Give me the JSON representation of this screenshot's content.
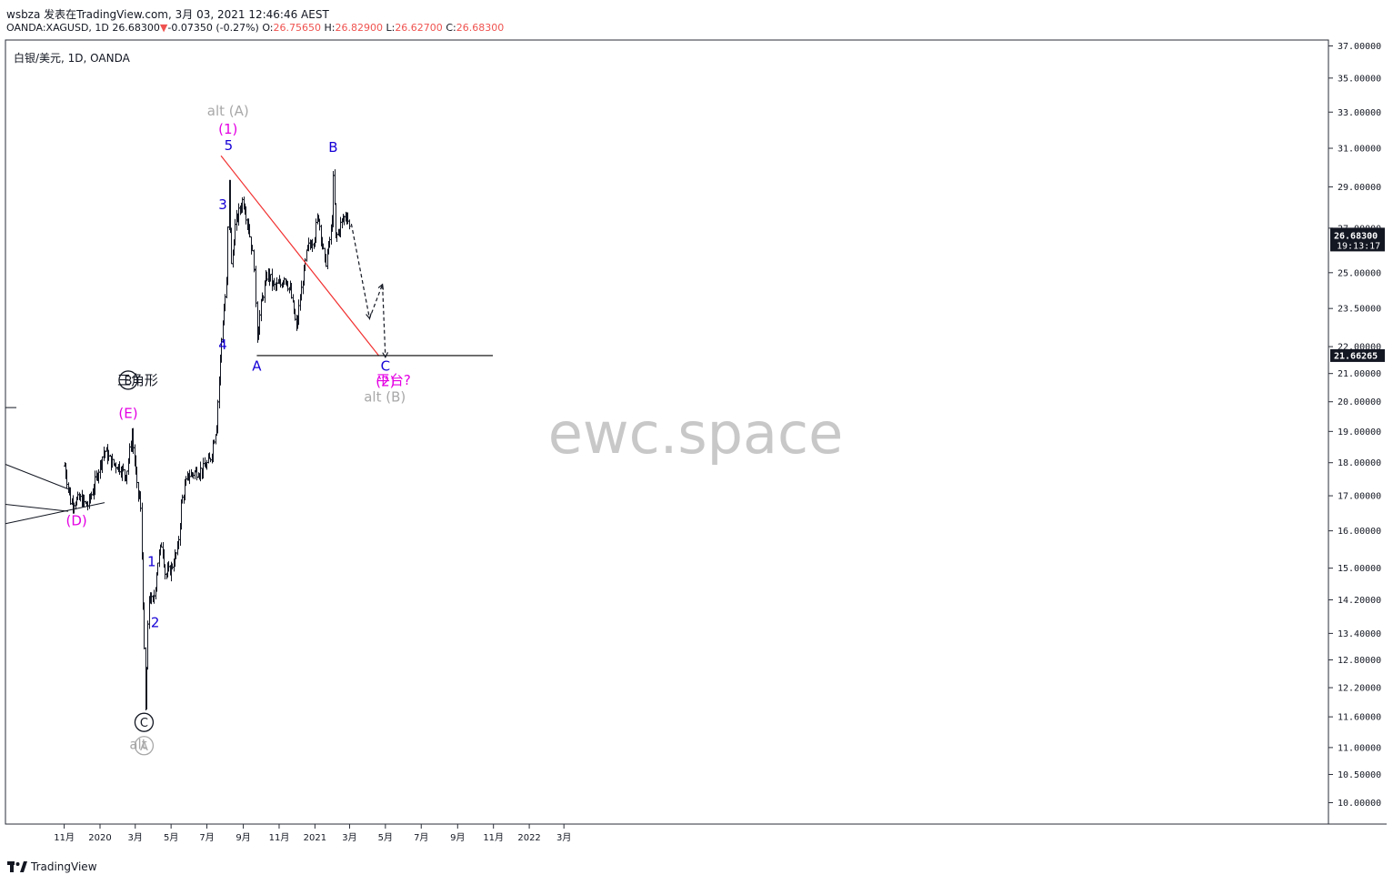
{
  "header": {
    "line1": "wsbza 发表在TradingView.com, 3月 03, 2021 12:46:46 AEST",
    "symbol_prefix": "OANDA:XAGUSD, 1D",
    "last": "26.68300",
    "down_arrow": "▼",
    "change": "-0.07350 (-0.27%)",
    "o_label": "O:",
    "o_val": "26.75650",
    "h_label": "H:",
    "h_val": "26.82900",
    "l_label": "L:",
    "l_val": "26.62700",
    "c_label": "C:",
    "c_val": "26.68300"
  },
  "symbol_label": "白银/美元, 1D, OANDA",
  "footer": {
    "brand": "TradingView"
  },
  "colors": {
    "wave_blue": "#1500d6",
    "wave_magenta": "#e400e3",
    "alt_gray": "#a8a8a8",
    "trendline": "#f23030",
    "bars": "#131722",
    "watermark": "#c8c8c8",
    "price_tag": "#131722"
  },
  "chart_data": {
    "type": "ohlc",
    "symbol": "OANDA:XAGUSD",
    "timeframe": "1D",
    "y_scale": "log",
    "ylim": [
      9.7,
      37.2
    ],
    "y_ticks": [
      "37.00000",
      "35.00000",
      "33.00000",
      "31.00000",
      "29.00000",
      "27.00000",
      "25.00000",
      "23.50000",
      "22.00000",
      "21.00000",
      "20.00000",
      "19.00000",
      "18.00000",
      "17.00000",
      "16.00000",
      "15.00000",
      "14.20000",
      "13.40000",
      "12.80000",
      "12.20000",
      "11.60000",
      "11.00000",
      "10.50000",
      "10.00000"
    ],
    "x_ticks": [
      "11月",
      "2020",
      "3月",
      "5月",
      "7月",
      "9月",
      "11月",
      "2021",
      "3月",
      "5月",
      "7月",
      "9月",
      "11月",
      "2022",
      "3月"
    ],
    "last_price": {
      "value": "26.68300",
      "countdown": "19:13:17"
    },
    "level_price": "21.66265",
    "price_path": [
      [
        "2019-11-01",
        17.9
      ],
      [
        "2019-11-12",
        16.8
      ],
      [
        "2019-11-28",
        16.9
      ],
      [
        "2019-12-10",
        16.7
      ],
      [
        "2019-12-20",
        17.2
      ],
      [
        "2019-12-31",
        17.9
      ],
      [
        "2020-01-08",
        18.4
      ],
      [
        "2020-01-20",
        18.0
      ],
      [
        "2020-02-01",
        17.9
      ],
      [
        "2020-02-14",
        17.6
      ],
      [
        "2020-02-24",
        18.9
      ],
      [
        "2020-03-04",
        17.1
      ],
      [
        "2020-03-09",
        16.9
      ],
      [
        "2020-03-12",
        15.2
      ],
      [
        "2020-03-18",
        11.7
      ],
      [
        "2020-03-24",
        14.3
      ],
      [
        "2020-03-31",
        14.1
      ],
      [
        "2020-04-08",
        15.2
      ],
      [
        "2020-04-15",
        15.7
      ],
      [
        "2020-04-21",
        14.8
      ],
      [
        "2020-05-01",
        15.0
      ],
      [
        "2020-05-12",
        15.5
      ],
      [
        "2020-05-18",
        16.8
      ],
      [
        "2020-05-29",
        17.6
      ],
      [
        "2020-06-10",
        17.7
      ],
      [
        "2020-06-24",
        17.8
      ],
      [
        "2020-07-06",
        18.1
      ],
      [
        "2020-07-17",
        19.2
      ],
      [
        "2020-07-22",
        21.0
      ],
      [
        "2020-07-27",
        22.8
      ],
      [
        "2020-08-03",
        24.5
      ],
      [
        "2020-08-07",
        29.3
      ],
      [
        "2020-08-11",
        25.2
      ],
      [
        "2020-08-18",
        27.2
      ],
      [
        "2020-08-31",
        28.4
      ],
      [
        "2020-09-10",
        27.0
      ],
      [
        "2020-09-21",
        24.7
      ],
      [
        "2020-09-24",
        22.4
      ],
      [
        "2020-10-01",
        23.7
      ],
      [
        "2020-10-12",
        25.0
      ],
      [
        "2020-10-23",
        24.4
      ],
      [
        "2020-11-04",
        24.5
      ],
      [
        "2020-11-09",
        24.9
      ],
      [
        "2020-11-20",
        24.2
      ],
      [
        "2020-11-30",
        22.7
      ],
      [
        "2020-12-08",
        24.2
      ],
      [
        "2020-12-18",
        26.0
      ],
      [
        "2020-12-31",
        26.6
      ],
      [
        "2021-01-06",
        27.7
      ],
      [
        "2021-01-18",
        25.3
      ],
      [
        "2021-01-29",
        27.0
      ],
      [
        "2021-02-01",
        29.5
      ],
      [
        "2021-02-05",
        26.5
      ],
      [
        "2021-02-15",
        27.3
      ],
      [
        "2021-02-24",
        27.7
      ],
      [
        "2021-03-02",
        26.683
      ]
    ],
    "projection": [
      [
        "2021-03-04",
        27.2
      ],
      [
        "2021-04-04",
        23.1
      ],
      [
        "2021-04-26",
        24.5
      ],
      [
        "2021-05-01",
        21.6
      ]
    ],
    "trendlines": [
      {
        "color": "#f23030",
        "from": [
          "2020-07-25",
          30.6
        ],
        "to": [
          "2021-04-20",
          21.65
        ]
      },
      {
        "color": "#000000",
        "from": [
          "2020-09-24",
          21.66265
        ],
        "to": [
          "2021-10-31",
          21.66265
        ]
      }
    ],
    "wave_labels": [
      {
        "text": "alt (A)",
        "color": "#a8a8a8",
        "at": [
          "2020-08-06",
          32.8
        ],
        "style": "text"
      },
      {
        "text": "(1)",
        "color": "#e400e3",
        "at": [
          "2020-08-06",
          31.8
        ],
        "style": "text"
      },
      {
        "text": "5",
        "color": "#1500d6",
        "at": [
          "2020-08-07",
          30.9
        ],
        "style": "text"
      },
      {
        "text": "3",
        "color": "#1500d6",
        "at": [
          "2020-07-28",
          27.9
        ],
        "style": "text"
      },
      {
        "text": "4",
        "color": "#1500d6",
        "at": [
          "2020-07-28",
          21.9
        ],
        "style": "text"
      },
      {
        "text": "B",
        "color": "#1500d6",
        "at": [
          "2021-02-01",
          30.8
        ],
        "style": "text"
      },
      {
        "text": "A",
        "color": "#1500d6",
        "at": [
          "2020-09-24",
          21.1
        ],
        "style": "text"
      },
      {
        "text": "C",
        "color": "#1500d6",
        "at": [
          "2021-05-01",
          21.1
        ],
        "style": "text"
      },
      {
        "text": "(2)",
        "color": "#e400e3",
        "at": [
          "2021-05-01",
          20.55
        ],
        "style": "text"
      },
      {
        "text": "平台?",
        "color": "#e400e3",
        "at": [
          "2021-05-15",
          20.6
        ],
        "style": "text"
      },
      {
        "text": "alt (B)",
        "color": "#a8a8a8",
        "at": [
          "2021-04-30",
          20.0
        ],
        "style": "text"
      },
      {
        "text": "B",
        "color": "#131722",
        "at": [
          "2020-02-18",
          20.6
        ],
        "style": "circle"
      },
      {
        "text": "三角形",
        "color": "#131722",
        "at": [
          "2020-03-05",
          20.6
        ],
        "style": "text"
      },
      {
        "text": "(E)",
        "color": "#e400e3",
        "at": [
          "2020-02-18",
          19.45
        ],
        "style": "text"
      },
      {
        "text": "(D)",
        "color": "#e400e3",
        "at": [
          "2019-11-22",
          16.15
        ],
        "style": "text"
      },
      {
        "text": "1",
        "color": "#1500d6",
        "at": [
          "2020-03-29",
          15.05
        ],
        "style": "text"
      },
      {
        "text": "2",
        "color": "#1500d6",
        "at": [
          "2020-04-04",
          13.55
        ],
        "style": "text"
      },
      {
        "text": "C",
        "color": "#131722",
        "at": [
          "2020-03-16",
          11.4
        ],
        "style": "circle"
      },
      {
        "text": "alt",
        "color": "#a8a8a8",
        "at": [
          "2020-03-06",
          10.97
        ],
        "style": "text"
      },
      {
        "text": "A",
        "color": "#a8a8a8",
        "at": [
          "2020-03-16",
          10.95
        ],
        "style": "circle"
      }
    ],
    "watermark": "ewc.space"
  }
}
